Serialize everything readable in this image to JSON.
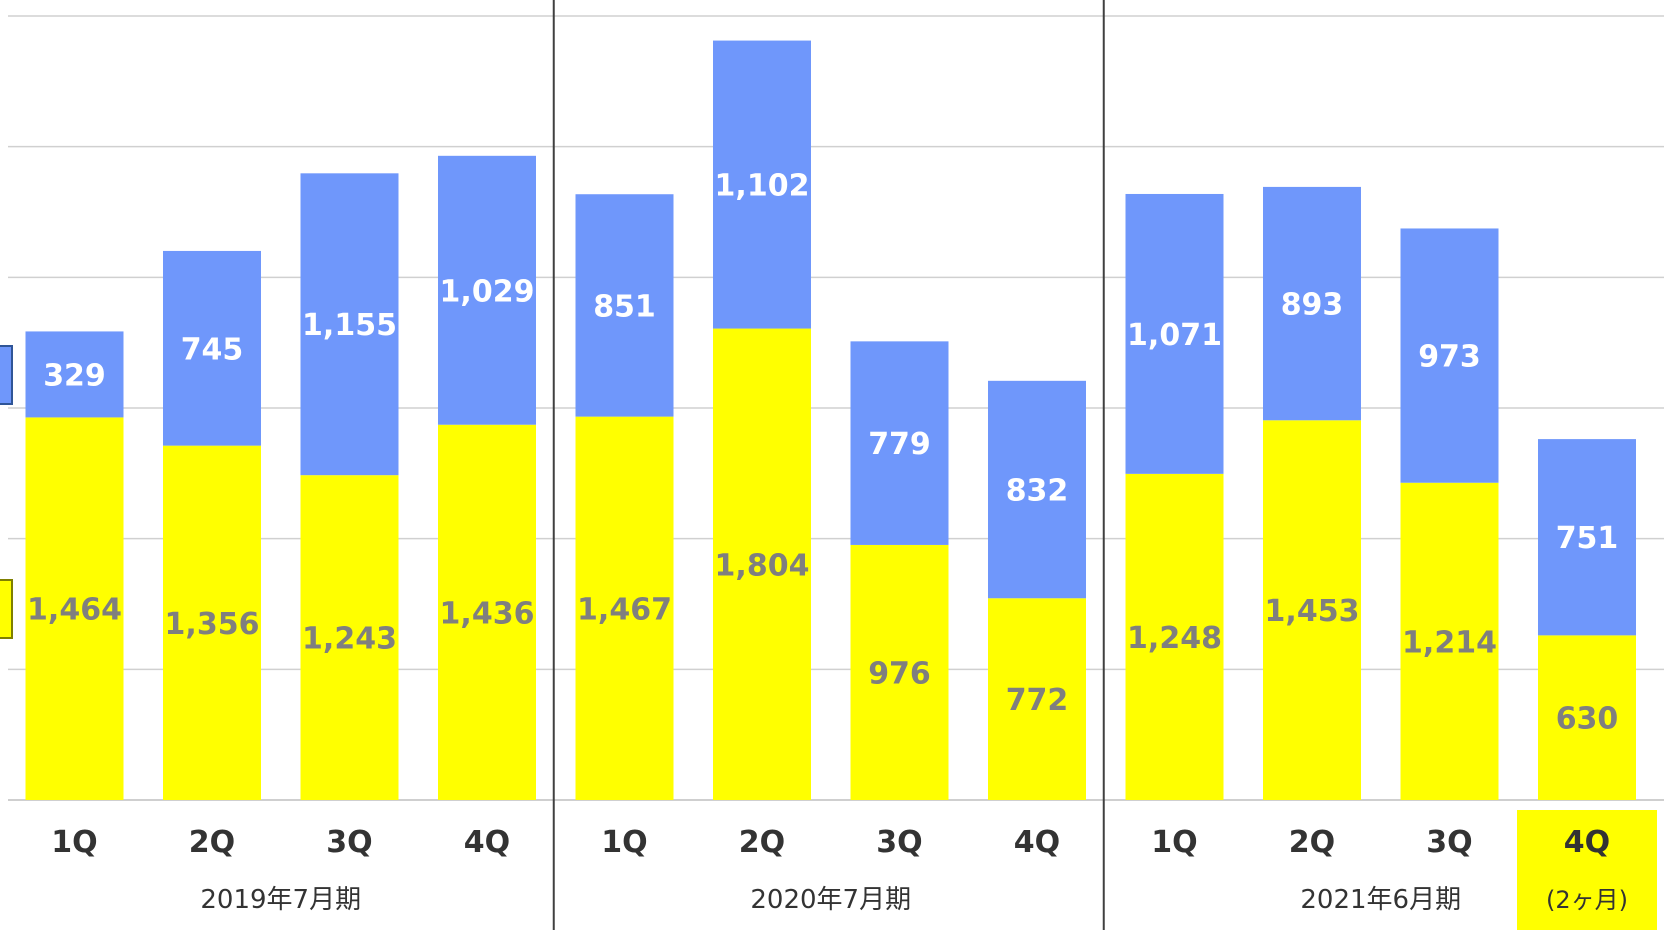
{
  "chart_data": {
    "type": "bar",
    "stacked": true,
    "categories": [
      "1Q",
      "2Q",
      "3Q",
      "4Q",
      "1Q",
      "2Q",
      "3Q",
      "4Q",
      "1Q",
      "2Q",
      "3Q",
      "4Q"
    ],
    "groups": [
      {
        "label": "2019年7月期",
        "note": ""
      },
      {
        "label": "2020年7月期",
        "note": ""
      },
      {
        "label": "2021年6月期",
        "note": "(2ヶ月)"
      }
    ],
    "series": [
      {
        "color": "#ffff00",
        "label_color": "#7f7f7f",
        "values": [
          1464,
          1356,
          1243,
          1436,
          1467,
          1804,
          976,
          772,
          1248,
          1453,
          1214,
          630
        ]
      },
      {
        "color": "#6f97fb",
        "label_color": "#ffffff",
        "values": [
          329,
          745,
          1155,
          1029,
          851,
          1102,
          779,
          832,
          1071,
          893,
          973,
          751
        ]
      }
    ],
    "value_labels": {
      "series0": [
        "1,464",
        "1,356",
        "1,243",
        "1,436",
        "1,467",
        "1,804",
        "976",
        "772",
        "1,248",
        "1,453",
        "1,214",
        "630"
      ],
      "series1": [
        "329",
        "745",
        "1,155",
        "1,029",
        "851",
        "1,102",
        "779",
        "832",
        "1,071",
        "893",
        "973",
        "751"
      ]
    },
    "ylim": [
      0,
      3000
    ],
    "y_grid_step": 500,
    "grid": true,
    "highlight_last_category": "#ffff00",
    "title": "",
    "xlabel": "",
    "ylabel": ""
  }
}
